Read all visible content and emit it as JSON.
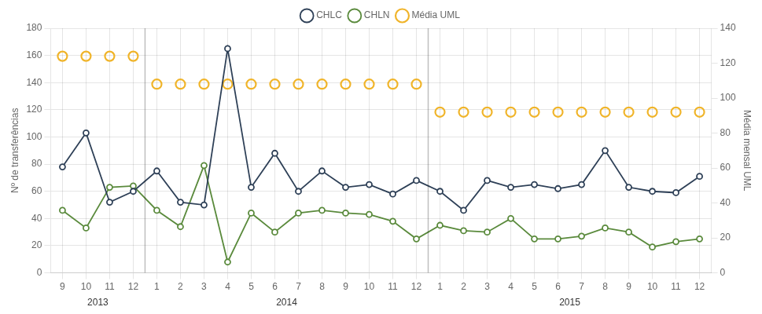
{
  "chart_data": {
    "type": "line",
    "categories": [
      "9",
      "10",
      "11",
      "12",
      "1",
      "2",
      "3",
      "4",
      "5",
      "6",
      "7",
      "8",
      "9",
      "10",
      "11",
      "12",
      "1",
      "2",
      "3",
      "4",
      "5",
      "6",
      "7",
      "8",
      "9",
      "10",
      "11",
      "12"
    ],
    "annotations": [
      "2013",
      "2014",
      "2015"
    ],
    "series": [
      {
        "name": "CHLC",
        "color": "#2e4057",
        "marker": "circle",
        "values": [
          78,
          103,
          52,
          60,
          75,
          52,
          50,
          165,
          63,
          88,
          60,
          75,
          63,
          65,
          58,
          68,
          60,
          46,
          68,
          63,
          65,
          62,
          65,
          90,
          63,
          60,
          59,
          71
        ]
      },
      {
        "name": "CHLN",
        "color": "#5a8a3c",
        "marker": "circle",
        "values": [
          46,
          33,
          63,
          64,
          46,
          34,
          79,
          8,
          44,
          30,
          44,
          46,
          44,
          43,
          38,
          25,
          35,
          31,
          30,
          40,
          25,
          25,
          27,
          33,
          30,
          19,
          23,
          25
        ]
      },
      {
        "name": "Média UML",
        "color": "#f0b429",
        "marker": "circle",
        "type": "scatter",
        "axis": "y2",
        "values": [
          124,
          124,
          124,
          124,
          108,
          108,
          108,
          108,
          108,
          108,
          108,
          108,
          108,
          108,
          108,
          108,
          92,
          92,
          92,
          92,
          92,
          92,
          92,
          92,
          92,
          92,
          92,
          92
        ]
      }
    ],
    "y_label": "Nº de transferências",
    "y2_label": "Média mensal UML",
    "ylim": [
      0,
      180
    ],
    "yticks": [
      0,
      20,
      40,
      60,
      80,
      100,
      120,
      140,
      160,
      180
    ],
    "y2lim": [
      0,
      140
    ],
    "y2ticks": [
      0,
      20,
      40,
      60,
      80,
      100,
      120,
      140
    ],
    "grid": true,
    "legend": "top"
  }
}
